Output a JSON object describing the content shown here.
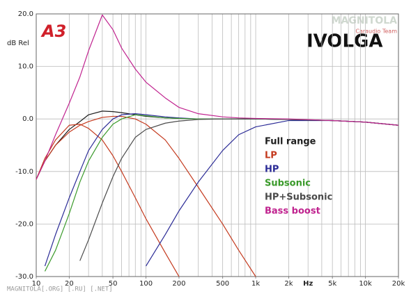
{
  "chart_data": {
    "type": "line",
    "title": "IVOLGA",
    "logo": "A3",
    "y_label": "dB Rel",
    "x_unit": {
      "value": 3000,
      "label": "Hz"
    },
    "watermark": "MAGNITOLA",
    "watermark_sub": "Caraudio Team",
    "footer": "MAGNITOLA[.ORG] [.RU] [.NET]",
    "xscale": "log",
    "xlim": [
      10,
      20000
    ],
    "ylim": [
      -30,
      20
    ],
    "xticks": [
      10,
      20,
      50,
      100,
      200,
      500,
      {
        "value": 1000,
        "label": "1k"
      },
      {
        "value": 2000,
        "label": "2k"
      },
      {
        "value": 5000,
        "label": "5k"
      },
      {
        "value": 10000,
        "label": "10k"
      },
      {
        "value": 20000,
        "label": "20k"
      }
    ],
    "yticks": [
      {
        "value": 20,
        "label": "20.0"
      },
      {
        "value": 10,
        "label": "10.0"
      },
      {
        "value": 0,
        "label": "0.0"
      },
      {
        "value": -10,
        "label": "-10.0"
      },
      {
        "value": -20,
        "label": "-20.0"
      },
      {
        "value": -30,
        "label": "-30.0"
      }
    ],
    "x_gridlines": [
      20,
      30,
      40,
      50,
      60,
      70,
      80,
      90,
      100,
      200,
      300,
      400,
      500,
      600,
      700,
      800,
      900,
      1000,
      2000,
      3000,
      4000,
      5000,
      6000,
      7000,
      8000,
      9000,
      10000
    ],
    "grid": true,
    "legend": "right",
    "x": [
      10,
      12,
      15,
      20,
      25,
      30,
      40,
      50,
      60,
      80,
      100,
      150,
      200,
      300,
      500,
      700,
      1000,
      2000,
      5000,
      10000,
      20000
    ],
    "series": [
      {
        "name": "Full range",
        "color": "#1e1e1e",
        "values": [
          -11.5,
          -8,
          -5,
          -2,
          -0.5,
          0.8,
          1.5,
          1.4,
          1.2,
          0.8,
          0.5,
          0.2,
          0.1,
          0,
          0,
          0,
          0,
          -0.1,
          -0.3,
          -0.6,
          -1.2
        ]
      },
      {
        "name": "LP",
        "color": "#c43a1e",
        "values": [
          -11.5,
          -7.5,
          -4,
          -1.2,
          -1,
          -1.8,
          -4,
          -7,
          -10,
          -15,
          -19,
          -25.5,
          -30,
          null,
          null,
          null,
          null,
          null,
          null,
          null,
          null
        ],
        "values_2": [
          -11.5,
          -8,
          -5,
          -2.5,
          -1.2,
          -0.5,
          0.3,
          0.5,
          0.5,
          0,
          -1,
          -4,
          -7.5,
          -13,
          -20,
          -25,
          -30,
          null,
          null,
          null,
          null
        ]
      },
      {
        "name": "HP",
        "color": "#2b2b96",
        "values": [
          null,
          -28,
          -22,
          -15,
          -10,
          -6,
          -2,
          0,
          0.8,
          1,
          0.8,
          0.4,
          0.2,
          0,
          0,
          0,
          0,
          -0.1,
          -0.3,
          -0.6,
          -1.2
        ],
        "values_2": [
          null,
          null,
          null,
          null,
          null,
          null,
          null,
          null,
          null,
          null,
          -28,
          -22,
          -17.5,
          -12,
          -6,
          -3,
          -1.5,
          -0.3,
          -0.3,
          -0.6,
          -1.2
        ]
      },
      {
        "name": "Subsonic",
        "color": "#3a9a2a",
        "values": [
          null,
          -29,
          -25,
          -18,
          -12,
          -8,
          -3.5,
          -1,
          0,
          0.8,
          0.6,
          0.2,
          0.1,
          0,
          0,
          0,
          0,
          -0.1,
          -0.3,
          -0.6,
          -1.2
        ]
      },
      {
        "name": "HP+Subsonic",
        "color": "#4a4a4a",
        "values": [
          null,
          null,
          null,
          null,
          -27,
          -23,
          -16,
          -11,
          -7.5,
          -3.5,
          -2,
          -0.8,
          -0.4,
          -0.1,
          0,
          0,
          0,
          -0.1,
          -0.3,
          -0.6,
          -1.2
        ]
      },
      {
        "name": "Bass boost",
        "color": "#c0238f",
        "values": [
          -11.5,
          -8,
          -3,
          3,
          8,
          13,
          19.8,
          17,
          13.5,
          9.5,
          7,
          4,
          2.2,
          1,
          0.4,
          0.2,
          0.1,
          0,
          -0.3,
          -0.6,
          -1.2
        ]
      }
    ]
  }
}
